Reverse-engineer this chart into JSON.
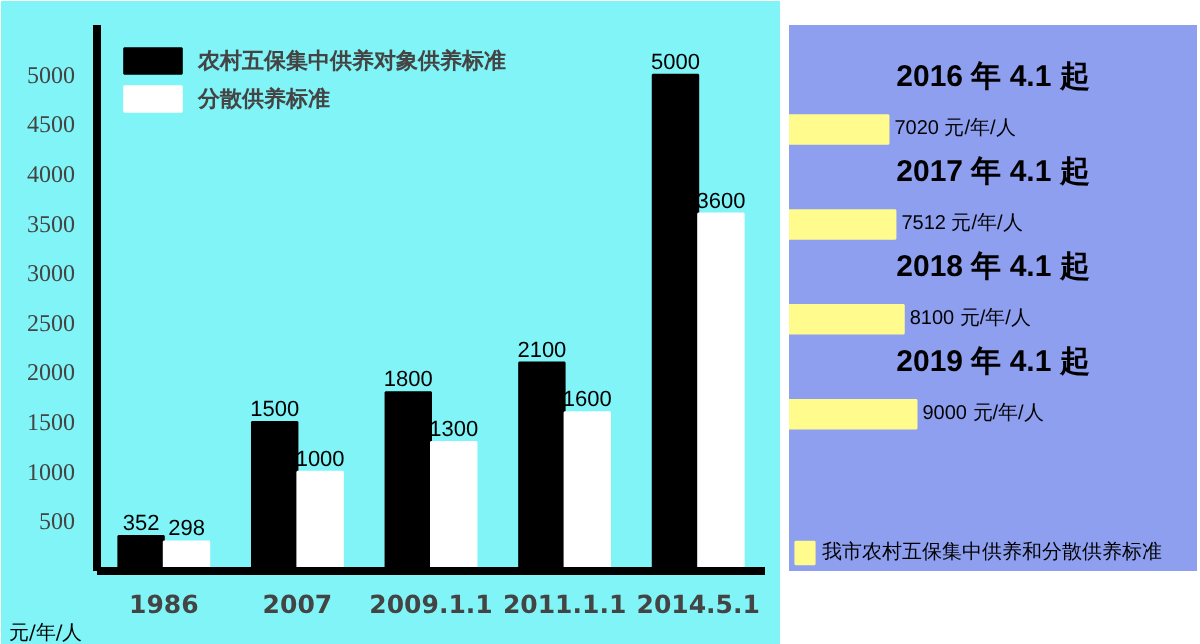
{
  "chart_data": [
    {
      "type": "bar",
      "ylabel": "元/年/人",
      "categories": [
        "1986",
        "2007",
        "2009.1.1",
        "2011.1.1",
        "2014.5.1"
      ],
      "series": [
        {
          "name": "农村五保集中供养对象供养标准",
          "color": "#000000",
          "values": [
            352,
            1500,
            1800,
            2100,
            5000
          ]
        },
        {
          "name": "分散供养标准",
          "color": "#ffffff",
          "values": [
            298,
            1000,
            1300,
            1600,
            3600
          ]
        }
      ],
      "ylim": [
        0,
        5500
      ],
      "yticks": [
        500,
        1000,
        1500,
        2000,
        2500,
        3000,
        3500,
        4000,
        4500,
        5000
      ],
      "data_labels": true,
      "grid": false,
      "legend": "top left"
    },
    {
      "type": "bar",
      "orientation": "horizontal",
      "categories": [
        "2016 年 4.1 起",
        "2017 年 4.1 起",
        "2018 年 4.1 起",
        "2019 年 4.1 起"
      ],
      "series": [
        {
          "name": "我市农村五保集中供养和分散供养标准",
          "color": "#fffb8c",
          "values": [
            7020,
            7512,
            8100,
            9000
          ],
          "value_labels": [
            "7020 元/年/人",
            "7512 元/年/人",
            "8100 元/年/人",
            "9000 元/年/人"
          ]
        }
      ],
      "legend": "bottom"
    }
  ]
}
